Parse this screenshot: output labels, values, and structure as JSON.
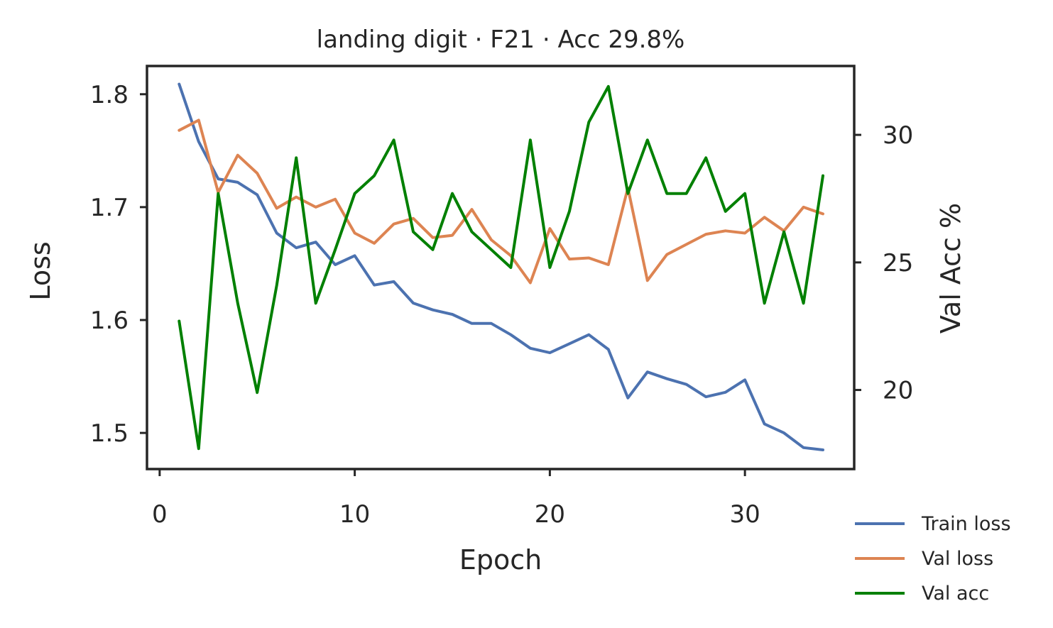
{
  "chart_data": {
    "type": "line",
    "title": "landing digit · F21 · Acc 29.8%",
    "xlabel": "Epoch",
    "ylabel": "Loss",
    "ylabel_right": "Val Acc %",
    "xlim": [
      -0.65,
      35.6
    ],
    "ylim": [
      1.468,
      1.825
    ],
    "ylim_right": [
      16.9,
      32.7
    ],
    "x_ticks": [
      0,
      10,
      20,
      30
    ],
    "y_ticks": [
      1.5,
      1.6,
      1.7,
      1.8
    ],
    "y_ticks_right": [
      20,
      25,
      30
    ],
    "grid": false,
    "legend_position": "bottom-right outside",
    "x": [
      1,
      2,
      3,
      4,
      5,
      6,
      7,
      8,
      9,
      10,
      11,
      12,
      13,
      14,
      15,
      16,
      17,
      18,
      19,
      20,
      21,
      22,
      23,
      24,
      25,
      26,
      27,
      28,
      29,
      30,
      31,
      32,
      33,
      34
    ],
    "series": [
      {
        "name": "Train loss",
        "axis": "left",
        "color": "#4c72b0",
        "values": [
          1.809,
          1.758,
          1.725,
          1.722,
          1.711,
          1.677,
          1.664,
          1.669,
          1.649,
          1.657,
          1.631,
          1.634,
          1.615,
          1.609,
          1.605,
          1.597,
          1.597,
          1.587,
          1.575,
          1.571,
          1.579,
          1.587,
          1.574,
          1.531,
          1.554,
          1.548,
          1.543,
          1.532,
          1.536,
          1.547,
          1.508,
          1.5,
          1.487,
          1.485
        ]
      },
      {
        "name": "Val loss",
        "axis": "left",
        "color": "#dd8452",
        "values": [
          1.768,
          1.777,
          1.713,
          1.746,
          1.73,
          1.699,
          1.709,
          1.7,
          1.707,
          1.677,
          1.668,
          1.685,
          1.69,
          1.673,
          1.675,
          1.698,
          1.671,
          1.657,
          1.633,
          1.681,
          1.654,
          1.655,
          1.649,
          1.717,
          1.635,
          1.658,
          1.667,
          1.676,
          1.679,
          1.677,
          1.691,
          1.679,
          1.7,
          1.694
        ]
      },
      {
        "name": "Val acc",
        "axis": "right",
        "color": "#008000",
        "values": [
          22.7,
          17.7,
          27.7,
          23.4,
          19.9,
          24.1,
          29.1,
          23.4,
          25.5,
          27.7,
          28.4,
          29.8,
          26.2,
          25.5,
          27.7,
          26.2,
          25.5,
          24.8,
          29.8,
          24.8,
          27.0,
          30.5,
          31.9,
          27.7,
          29.8,
          27.7,
          27.7,
          29.1,
          27.0,
          27.7,
          23.4,
          26.2,
          23.4,
          28.4
        ]
      }
    ]
  }
}
